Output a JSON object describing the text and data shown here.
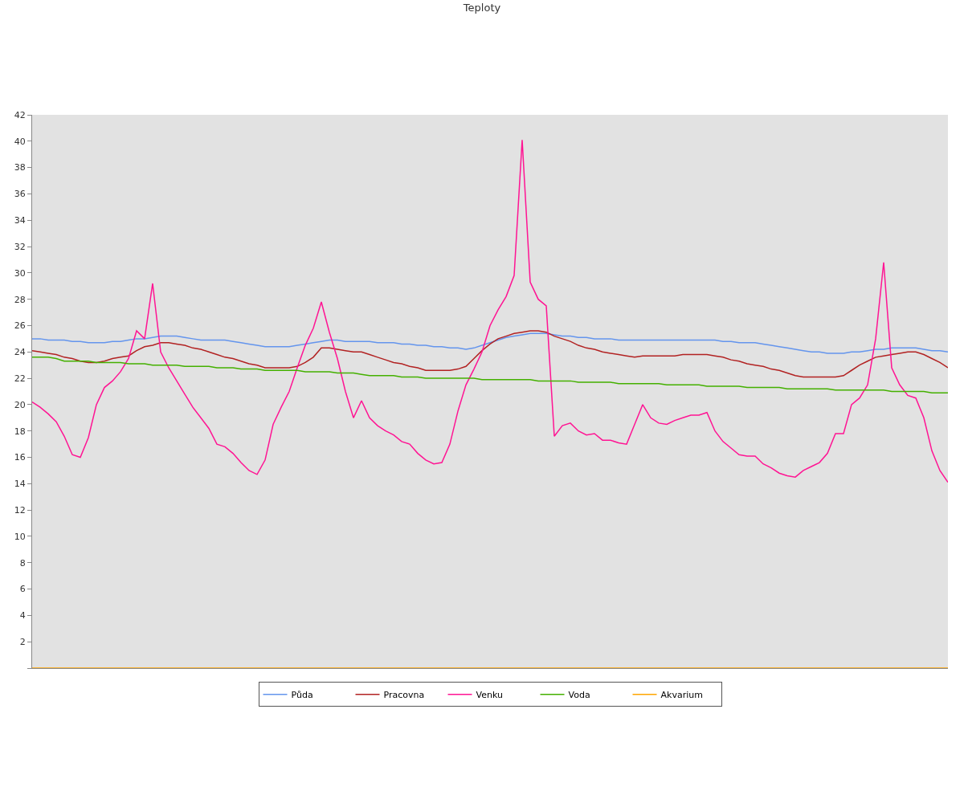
{
  "chart_data": {
    "type": "line",
    "title": "Teploty",
    "categories": [
      null,
      null,
      null,
      null,
      null,
      null,
      null,
      null,
      null,
      null,
      null,
      null,
      null,
      null,
      null,
      null,
      null,
      null,
      null,
      null,
      null,
      null,
      null,
      null,
      null,
      null,
      null,
      null,
      null,
      null,
      null,
      null,
      null,
      null,
      null,
      null,
      null,
      null,
      null,
      null,
      null,
      null,
      null,
      null,
      null,
      null,
      null,
      null,
      null,
      null,
      null,
      null,
      null,
      null,
      null,
      null,
      null,
      null,
      null,
      null,
      null,
      null,
      null,
      null,
      null,
      null,
      null,
      null,
      null,
      null,
      null,
      null,
      null,
      null,
      null,
      null,
      null,
      null,
      null,
      null,
      null,
      null,
      null,
      null,
      null,
      null,
      null,
      null,
      null,
      null,
      null,
      null,
      null,
      null,
      null,
      null,
      null,
      null,
      null,
      null,
      null,
      null,
      null,
      null,
      null,
      null,
      null,
      null,
      null,
      null,
      null,
      null,
      null,
      null,
      null
    ],
    "series": [
      {
        "name": "Půda",
        "color": "#6495ed",
        "values": [
          25.0,
          25.0,
          24.9,
          24.9,
          24.9,
          24.8,
          24.8,
          24.7,
          24.7,
          24.7,
          24.8,
          24.8,
          24.9,
          25.0,
          25.0,
          25.1,
          25.2,
          25.2,
          25.2,
          25.1,
          25.0,
          24.9,
          24.9,
          24.9,
          24.9,
          24.8,
          24.7,
          24.6,
          24.5,
          24.4,
          24.4,
          24.4,
          24.4,
          24.5,
          24.6,
          24.7,
          24.8,
          24.9,
          24.9,
          24.8,
          24.8,
          24.8,
          24.8,
          24.7,
          24.7,
          24.7,
          24.6,
          24.6,
          24.5,
          24.5,
          24.4,
          24.4,
          24.3,
          24.3,
          24.2,
          24.3,
          24.5,
          24.7,
          24.9,
          25.1,
          25.2,
          25.3,
          25.4,
          25.4,
          25.4,
          25.3,
          25.2,
          25.2,
          25.1,
          25.1,
          25.0,
          25.0,
          25.0,
          24.9,
          24.9,
          24.9,
          24.9,
          24.9,
          24.9,
          24.9,
          24.9,
          24.9,
          24.9,
          24.9,
          24.9,
          24.9,
          24.8,
          24.8,
          24.7,
          24.7,
          24.7,
          24.6,
          24.5,
          24.4,
          24.3,
          24.2,
          24.1,
          24.0,
          24.0,
          23.9,
          23.9,
          23.9,
          24.0,
          24.0,
          24.1,
          24.2,
          24.2,
          24.3,
          24.3,
          24.3,
          24.3,
          24.2,
          24.1,
          24.1,
          24.0
        ]
      },
      {
        "name": "Pracovna",
        "color": "#b22222",
        "values": [
          24.1,
          24.0,
          23.9,
          23.8,
          23.6,
          23.5,
          23.3,
          23.2,
          23.2,
          23.3,
          23.5,
          23.6,
          23.7,
          24.1,
          24.4,
          24.5,
          24.7,
          24.7,
          24.6,
          24.5,
          24.3,
          24.2,
          24.0,
          23.8,
          23.6,
          23.5,
          23.3,
          23.1,
          23.0,
          22.8,
          22.8,
          22.8,
          22.8,
          22.9,
          23.2,
          23.6,
          24.3,
          24.3,
          24.2,
          24.1,
          24.0,
          24.0,
          23.8,
          23.6,
          23.4,
          23.2,
          23.1,
          22.9,
          22.8,
          22.6,
          22.6,
          22.6,
          22.6,
          22.7,
          22.9,
          23.5,
          24.1,
          24.6,
          25.0,
          25.2,
          25.4,
          25.5,
          25.6,
          25.6,
          25.5,
          25.2,
          25.0,
          24.8,
          24.5,
          24.3,
          24.2,
          24.0,
          23.9,
          23.8,
          23.7,
          23.6,
          23.7,
          23.7,
          23.7,
          23.7,
          23.7,
          23.8,
          23.8,
          23.8,
          23.8,
          23.7,
          23.6,
          23.4,
          23.3,
          23.1,
          23.0,
          22.9,
          22.7,
          22.6,
          22.4,
          22.2,
          22.1,
          22.1,
          22.1,
          22.1,
          22.1,
          22.2,
          22.6,
          23.0,
          23.3,
          23.6,
          23.7,
          23.8,
          23.9,
          24.0,
          24.0,
          23.8,
          23.5,
          23.2,
          22.8
        ]
      },
      {
        "name": "Venku",
        "color": "#ff1493",
        "values": [
          20.2,
          19.8,
          19.3,
          18.7,
          17.6,
          16.2,
          16.0,
          17.5,
          20.0,
          21.3,
          21.8,
          22.5,
          23.5,
          25.6,
          25.0,
          29.2,
          24.0,
          22.8,
          21.8,
          20.8,
          19.8,
          19.0,
          18.2,
          17.0,
          16.8,
          16.3,
          15.6,
          15.0,
          14.7,
          15.8,
          18.5,
          19.8,
          21.0,
          22.8,
          24.5,
          25.8,
          27.8,
          25.5,
          23.5,
          21.0,
          19.0,
          20.3,
          19.0,
          18.4,
          18.0,
          17.7,
          17.2,
          17.0,
          16.3,
          15.8,
          15.5,
          15.6,
          17.0,
          19.5,
          21.5,
          22.7,
          24.0,
          26.0,
          27.2,
          28.2,
          29.8,
          40.1,
          29.3,
          28.0,
          27.5,
          17.6,
          18.4,
          18.6,
          18.0,
          17.7,
          17.8,
          17.3,
          17.3,
          17.1,
          17.0,
          18.5,
          20.0,
          19.0,
          18.6,
          18.5,
          18.8,
          19.0,
          19.2,
          19.2,
          19.4,
          18.0,
          17.2,
          16.7,
          16.2,
          16.1,
          16.1,
          15.5,
          15.2,
          14.8,
          14.6,
          14.5,
          15.0,
          15.3,
          15.6,
          16.3,
          17.8,
          17.8,
          20.0,
          20.5,
          21.5,
          25.0,
          30.8,
          22.8,
          21.5,
          20.7,
          20.5,
          19.0,
          16.5,
          15.0,
          14.1
        ]
      },
      {
        "name": "Voda",
        "color": "#44b000",
        "values": [
          23.6,
          23.6,
          23.6,
          23.5,
          23.3,
          23.3,
          23.3,
          23.3,
          23.2,
          23.2,
          23.2,
          23.2,
          23.1,
          23.1,
          23.1,
          23.0,
          23.0,
          23.0,
          23.0,
          22.9,
          22.9,
          22.9,
          22.9,
          22.8,
          22.8,
          22.8,
          22.7,
          22.7,
          22.7,
          22.6,
          22.6,
          22.6,
          22.6,
          22.6,
          22.5,
          22.5,
          22.5,
          22.5,
          22.4,
          22.4,
          22.4,
          22.3,
          22.2,
          22.2,
          22.2,
          22.2,
          22.1,
          22.1,
          22.1,
          22.0,
          22.0,
          22.0,
          22.0,
          22.0,
          22.0,
          22.0,
          21.9,
          21.9,
          21.9,
          21.9,
          21.9,
          21.9,
          21.9,
          21.8,
          21.8,
          21.8,
          21.8,
          21.8,
          21.7,
          21.7,
          21.7,
          21.7,
          21.7,
          21.6,
          21.6,
          21.6,
          21.6,
          21.6,
          21.6,
          21.5,
          21.5,
          21.5,
          21.5,
          21.5,
          21.4,
          21.4,
          21.4,
          21.4,
          21.4,
          21.3,
          21.3,
          21.3,
          21.3,
          21.3,
          21.2,
          21.2,
          21.2,
          21.2,
          21.2,
          21.2,
          21.1,
          21.1,
          21.1,
          21.1,
          21.1,
          21.1,
          21.1,
          21.0,
          21.0,
          21.0,
          21.0,
          21.0,
          20.9,
          20.9,
          20.9
        ]
      },
      {
        "name": "Akvarium",
        "color": "#ffa500",
        "values": [
          0,
          0,
          0,
          0,
          0,
          0,
          0,
          0,
          0,
          0,
          0,
          0,
          0,
          0,
          0,
          0,
          0,
          0,
          0,
          0,
          0,
          0,
          0,
          0,
          0,
          0,
          0,
          0,
          0,
          0,
          0,
          0,
          0,
          0,
          0,
          0,
          0,
          0,
          0,
          0,
          0,
          0,
          0,
          0,
          0,
          0,
          0,
          0,
          0,
          0,
          0,
          0,
          0,
          0,
          0,
          0,
          0,
          0,
          0,
          0,
          0,
          0,
          0,
          0,
          0,
          0,
          0,
          0,
          0,
          0,
          0,
          0,
          0,
          0,
          0,
          0,
          0,
          0,
          0,
          0,
          0,
          0,
          0,
          0,
          0,
          0,
          0,
          0,
          0,
          0,
          0,
          0,
          0,
          0,
          0,
          0,
          0,
          0,
          0,
          0,
          0,
          0,
          0,
          0,
          0,
          0,
          0,
          0,
          0,
          0,
          0,
          0,
          0,
          0,
          0
        ]
      }
    ],
    "ylim": [
      0,
      42
    ],
    "yticks": [
      {
        "value": 0,
        "label": null
      },
      2,
      4,
      6,
      8,
      10,
      12,
      14,
      16,
      18,
      20,
      22,
      24,
      26,
      28,
      30,
      32,
      34,
      36,
      38,
      40,
      42
    ],
    "tick_labels": "y",
    "grid": false,
    "legend": "bottom",
    "marker": "none",
    "line_style": "solid"
  }
}
